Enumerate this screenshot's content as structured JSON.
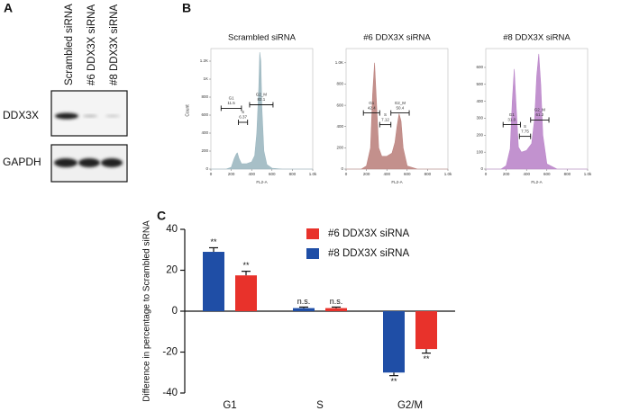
{
  "panels": [
    "A",
    "B",
    "C"
  ],
  "blot": {
    "lanes": [
      "Scrambled siRNA",
      "#6 DDX3X siRNA",
      "#8 DDX3X siRNA"
    ],
    "rows": [
      "DDX3X",
      "GAPDH"
    ]
  },
  "chart_data": [
    {
      "type": "area",
      "title": "Scrambled siRNA",
      "x_label": "FL2-A",
      "y_label": "Count",
      "color": "#9db8c1",
      "x": [
        0,
        150,
        200,
        230,
        250,
        260,
        275,
        300,
        350,
        400,
        430,
        450,
        470,
        480,
        490,
        500,
        520,
        550,
        600,
        700,
        1000
      ],
      "values": [
        0,
        0,
        20,
        120,
        170,
        180,
        120,
        60,
        60,
        80,
        150,
        400,
        900,
        1300,
        1200,
        700,
        200,
        50,
        10,
        0,
        0
      ],
      "xlim": [
        0,
        1000
      ],
      "ylim": [
        0,
        1300
      ],
      "xticks": [
        0,
        200,
        400,
        600,
        800,
        {
          "value": 1000,
          "label": "1.0k"
        }
      ],
      "yticks": [
        0,
        200,
        400,
        600,
        800,
        {
          "value": 1000,
          "label": "1K"
        },
        {
          "value": 1200,
          "label": "1.2K"
        }
      ],
      "gates": {
        "names": [
          "G1",
          "S",
          "G2_M"
        ],
        "values": [
          11.5,
          6.37,
          82.1
        ]
      }
    },
    {
      "type": "area",
      "title": "#6 DDX3X siRNA",
      "x_label": "FL2-A",
      "color": "#bd8480",
      "x": [
        0,
        150,
        200,
        240,
        260,
        280,
        300,
        320,
        350,
        400,
        450,
        480,
        500,
        520,
        540,
        560,
        600,
        700,
        1000
      ],
      "values": [
        0,
        0,
        30,
        200,
        700,
        1000,
        600,
        200,
        120,
        120,
        150,
        250,
        400,
        520,
        450,
        200,
        30,
        0,
        0
      ],
      "xlim": [
        0,
        1000
      ],
      "ylim": [
        0,
        1100
      ],
      "xticks": [
        0,
        200,
        400,
        600,
        800,
        {
          "value": 1000,
          "label": "1.0k"
        }
      ],
      "yticks": [
        0,
        200,
        400,
        600,
        800,
        {
          "value": 1000,
          "label": "1.0K"
        }
      ],
      "gates": {
        "names": [
          "G1",
          "S",
          "G2_M"
        ],
        "values": [
          42.4,
          7.12,
          50.4
        ]
      }
    },
    {
      "type": "area",
      "title": "#8 DDX3X siRNA",
      "x_label": "FL2-A",
      "color": "#bb86ca",
      "x": [
        0,
        150,
        200,
        240,
        260,
        280,
        300,
        320,
        350,
        400,
        450,
        480,
        500,
        520,
        540,
        560,
        600,
        700,
        1000
      ],
      "values": [
        0,
        0,
        20,
        120,
        400,
        590,
        350,
        130,
        100,
        110,
        150,
        300,
        550,
        680,
        500,
        200,
        30,
        0,
        0
      ],
      "xlim": [
        0,
        1000
      ],
      "ylim": [
        0,
        690
      ],
      "xticks": [
        0,
        200,
        400,
        600,
        800,
        {
          "value": 1000,
          "label": "1.0k"
        }
      ],
      "yticks": [
        0,
        100,
        200,
        300,
        400,
        500,
        600
      ],
      "gates": {
        "names": [
          "G1",
          "S",
          "G2_M"
        ],
        "values": [
          31.0,
          7.75,
          61.2
        ],
        "value_labels": [
          "31.0",
          "7.75",
          "61.2"
        ]
      }
    },
    {
      "type": "bar",
      "y_label": "Difference in percentage to Scrambled siRNA",
      "categories": [
        "G1",
        "S",
        "G2/M"
      ],
      "series": [
        {
          "name": "#8 DDX3X siRNA",
          "color": "#1f4ea6",
          "values": [
            29,
            1.5,
            -30
          ],
          "errors": [
            2,
            0.5,
            1.5
          ],
          "labels": [
            "**",
            "n.s.",
            "**"
          ]
        },
        {
          "name": "#6 DDX3X siRNA",
          "color": "#e8322b",
          "values": [
            17.5,
            1.5,
            -18.5
          ],
          "errors": [
            2,
            0.5,
            2
          ],
          "labels": [
            "**",
            "n.s.",
            "**"
          ]
        }
      ],
      "ylim": [
        -40,
        40
      ],
      "yticks": [
        -40,
        -20,
        0,
        20,
        40
      ]
    }
  ]
}
